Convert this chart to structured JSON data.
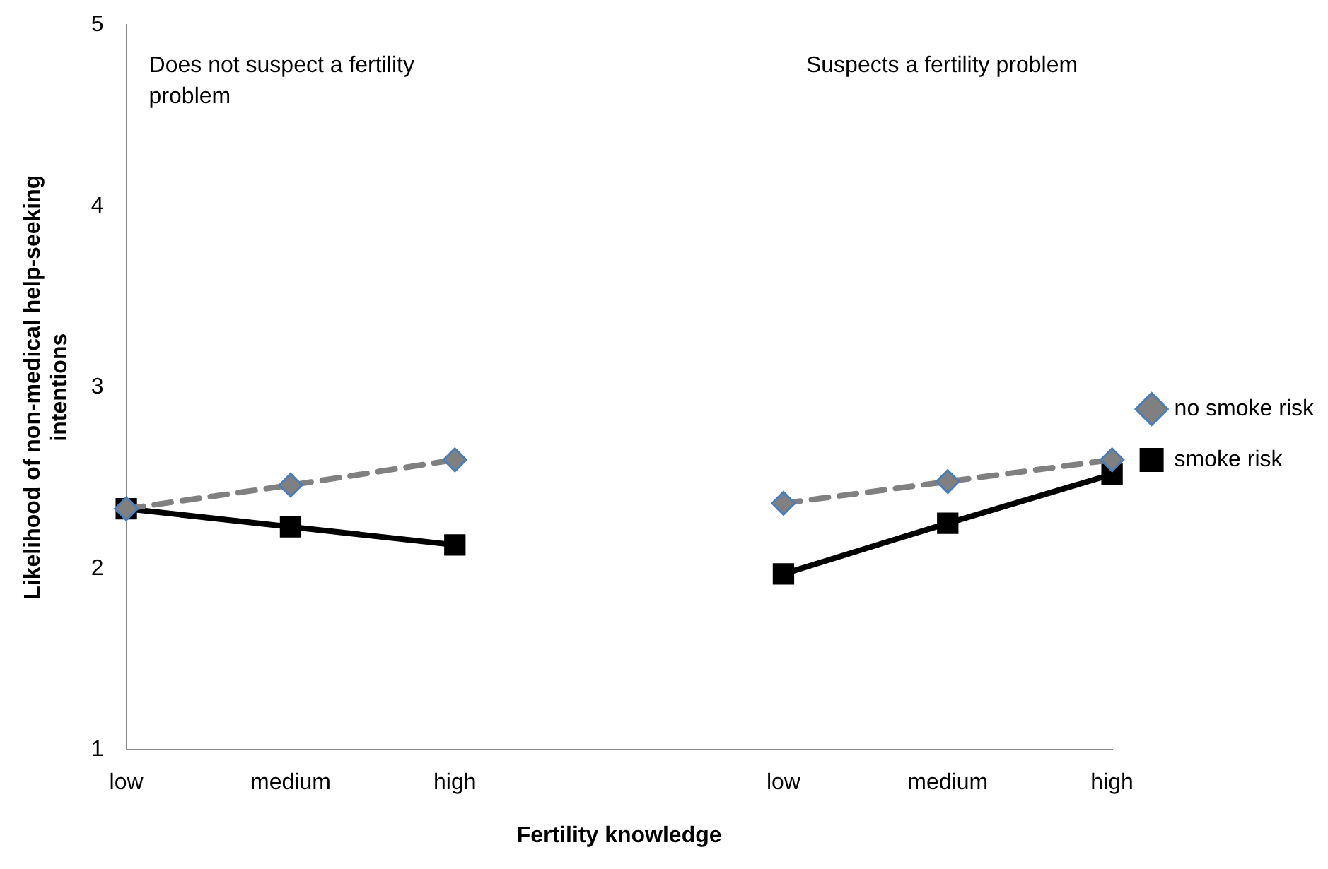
{
  "chart_data": {
    "type": "line",
    "xlabel": "Fertility knowledge",
    "ylabel": "Likelihood of non-medical help-seeking intentions",
    "categories": [
      "low",
      "medium",
      "high",
      null,
      "low",
      "medium",
      "high"
    ],
    "series": [
      {
        "name": "no smoke risk",
        "color": "#808080",
        "marker": "diamond",
        "line_style": "dashed",
        "values": [
          2.33,
          2.46,
          2.6,
          null,
          2.36,
          2.48,
          2.6
        ]
      },
      {
        "name": "smoke risk",
        "color": "#000000",
        "marker": "square",
        "line_style": "solid",
        "values": [
          2.33,
          2.23,
          2.13,
          null,
          1.97,
          2.25,
          2.52
        ]
      }
    ],
    "ylim": [
      1,
      5
    ],
    "yticks": [
      1,
      2,
      3,
      4,
      5
    ],
    "grid": false,
    "legend": "right",
    "annotations": [
      "Does not suspect a fertility problem",
      "Suspects a fertility problem"
    ]
  }
}
